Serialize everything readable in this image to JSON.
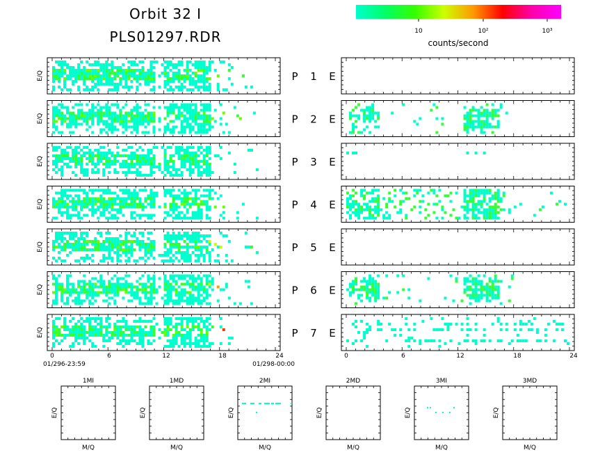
{
  "header": {
    "title_line1": "Orbit 32 I",
    "title_line2": "PLS01297.RDR"
  },
  "colorbar": {
    "colors": [
      "#00ffcc",
      "#00ff66",
      "#33ff00",
      "#ccff00",
      "#ff9900",
      "#ff0000",
      "#ff00aa",
      "#ff00ff"
    ],
    "tick_labels": [
      "10",
      "10²",
      "10³"
    ],
    "unit_label": "counts/second",
    "scale": "log"
  },
  "axis": {
    "x_ticks": [
      "0",
      "6",
      "12",
      "18",
      "24"
    ],
    "start_time": "01/296-23:59",
    "end_time": "01/298-00:00"
  },
  "chart_data": [
    {
      "type": "heatmap",
      "name": "ion-panels",
      "ylabel": "E/Q",
      "x_range": [
        0,
        24
      ],
      "panels": [
        {
          "label": "P",
          "index": "1",
          "activity": "broad",
          "max_level": 2
        },
        {
          "label": "P",
          "index": "2",
          "activity": "broad",
          "max_level": 2
        },
        {
          "label": "P",
          "index": "3",
          "activity": "broad",
          "max_level": 1
        },
        {
          "label": "P",
          "index": "4",
          "activity": "broad",
          "max_level": 2
        },
        {
          "label": "P",
          "index": "5",
          "activity": "broad",
          "max_level": 3
        },
        {
          "label": "P",
          "index": "6",
          "activity": "broad",
          "max_level": 4
        },
        {
          "label": "P",
          "index": "7",
          "activity": "broad",
          "max_level": 6
        }
      ]
    },
    {
      "type": "heatmap",
      "name": "electron-panels",
      "x_range": [
        0,
        24
      ],
      "panels": [
        {
          "label": "E",
          "index": "1",
          "activity": "none"
        },
        {
          "label": "E",
          "index": "2",
          "activity": "bursts"
        },
        {
          "label": "E",
          "index": "3",
          "activity": "sparse"
        },
        {
          "label": "E",
          "index": "4",
          "activity": "dense"
        },
        {
          "label": "E",
          "index": "5",
          "activity": "none"
        },
        {
          "label": "E",
          "index": "6",
          "activity": "bursts"
        },
        {
          "label": "E",
          "index": "7",
          "activity": "band"
        }
      ]
    },
    {
      "type": "heatmap",
      "name": "mass-panels",
      "xlabel": "M/Q",
      "ylabel": "E/Q",
      "panels": [
        {
          "title": "1MI",
          "activity": "none"
        },
        {
          "title": "1MD",
          "activity": "none"
        },
        {
          "title": "2MI",
          "activity": "row"
        },
        {
          "title": "2MD",
          "activity": "none"
        },
        {
          "title": "3MI",
          "activity": "few"
        },
        {
          "title": "3MD",
          "activity": "none"
        }
      ]
    }
  ]
}
